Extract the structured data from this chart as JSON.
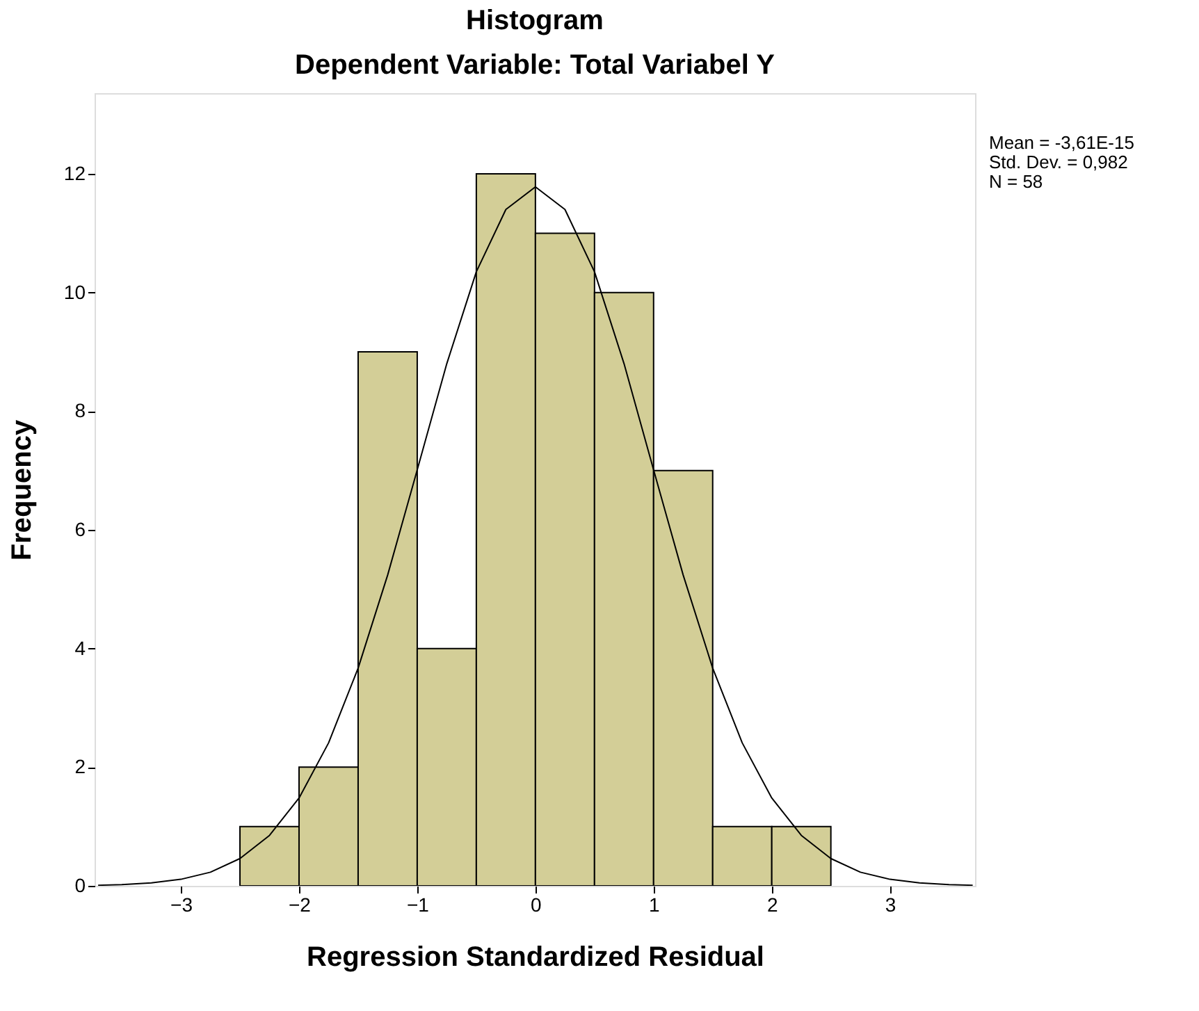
{
  "chart_data": {
    "type": "histogram",
    "title": "Histogram",
    "subtitle": "Dependent Variable: Total Variabel Y",
    "xlabel": "Regression Standardized Residual",
    "ylabel": "Frequency",
    "bins": [
      -2.5,
      -2.0,
      -1.5,
      -1.0,
      -0.5,
      0.0,
      0.5,
      1.0,
      1.5,
      2.0,
      2.5
    ],
    "values": [
      1,
      2,
      9,
      4,
      12,
      11,
      10,
      7,
      1,
      1
    ],
    "color": "#d3ce97",
    "series": [
      {
        "type": "line",
        "color": "#000000",
        "x": [
          -3.7,
          -3.5,
          -3.25,
          -3.0,
          -2.75,
          -2.5,
          -2.25,
          -2.0,
          -1.75,
          -1.5,
          -1.25,
          -1.0,
          -0.75,
          -0.5,
          -0.25,
          0.0,
          0.25,
          0.5,
          0.75,
          1.0,
          1.25,
          1.5,
          1.75,
          2.0,
          2.25,
          2.5,
          2.75,
          3.0,
          3.25,
          3.5,
          3.7
        ],
        "values": [
          0.01,
          0.02,
          0.05,
          0.11,
          0.23,
          0.46,
          0.85,
          1.48,
          2.41,
          3.67,
          5.24,
          7.01,
          8.8,
          10.35,
          11.4,
          11.78,
          11.4,
          10.35,
          8.8,
          7.01,
          5.24,
          3.67,
          2.41,
          1.48,
          0.85,
          0.46,
          0.23,
          0.11,
          0.05,
          0.02,
          0.01
        ]
      }
    ],
    "xlim": [
      -3.73,
      3.72
    ],
    "ylim": [
      0,
      13.36
    ],
    "xticks": [
      -3,
      -2,
      -1,
      0,
      1,
      2,
      3
    ],
    "yticks": [
      0,
      2,
      4,
      6,
      8,
      10,
      12
    ],
    "grid": false,
    "annotations": [
      "Mean = -3,61E-15",
      "Std. Dev. = 0,982",
      "N = 58"
    ]
  }
}
